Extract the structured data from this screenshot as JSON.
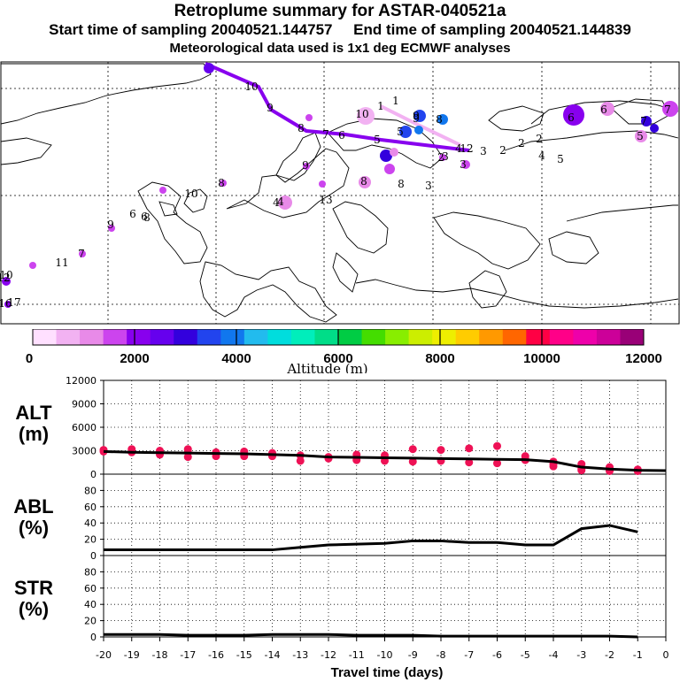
{
  "header": {
    "title": "Retroplume summary for ASTAR-040521a",
    "start_label": "Start time of sampling 20040521.144757",
    "end_label": "End time of sampling 20040521.144839",
    "met_label": "Meteorological data used is 1x1 deg ECMWF analyses"
  },
  "colorbar": {
    "label": "Altitude (m)",
    "ticks": [
      "0",
      "2000",
      "4000",
      "6000",
      "8000",
      "10000",
      "12000"
    ],
    "colors": [
      "#ffe0ff",
      "#f2b2f2",
      "#e88ae8",
      "#cc44ee",
      "#8800ee",
      "#6600ee",
      "#3300dd",
      "#2244ee",
      "#1177ee",
      "#22bbee",
      "#00dddd",
      "#00eebb",
      "#00dd88",
      "#00cc44",
      "#44dd00",
      "#88ee00",
      "#ccee00",
      "#eeee00",
      "#ffcc00",
      "#ff9900",
      "#ff6600",
      "#ff0044",
      "#ff0088",
      "#ee00aa",
      "#cc0099",
      "#990077"
    ]
  },
  "map": {
    "numbers": [
      {
        "t": "10",
        "c": "#6600ee"
      },
      {
        "t": "9",
        "c": "#6600ee"
      },
      {
        "t": "8",
        "c": "#6600ee"
      },
      {
        "t": "7",
        "c": "#6600ee"
      },
      {
        "t": "6",
        "c": "#6600ee"
      },
      {
        "t": "5",
        "c": "#6600ee"
      },
      {
        "t": "4",
        "c": "#6600ee"
      },
      {
        "t": "3",
        "c": "#6600ee"
      },
      {
        "t": "2",
        "c": "#6600ee"
      },
      {
        "t": "1",
        "c": "#e88ae8"
      },
      {
        "t": "1",
        "c": "#e88ae8"
      },
      {
        "t": "12",
        "c": "#6600ee"
      },
      {
        "t": "10",
        "c": "#cc44ee"
      },
      {
        "t": "9",
        "c": "#2244ee"
      },
      {
        "t": "8",
        "c": "#2244ee"
      },
      {
        "t": "5",
        "c": "#3300dd"
      },
      {
        "t": "6",
        "c": "#e88ae8"
      },
      {
        "t": "7",
        "c": "#3300dd"
      },
      {
        "t": "5",
        "c": "#f2b2f2"
      },
      {
        "t": "6",
        "c": "#cc44ee"
      },
      {
        "t": "7",
        "c": "#cc44ee"
      },
      {
        "t": "2",
        "c": "#cc44ee"
      },
      {
        "t": "3",
        "c": "#cc44ee"
      },
      {
        "t": "2",
        "c": "#cc44ee"
      },
      {
        "t": "9",
        "c": "#cc44ee"
      },
      {
        "t": "8",
        "c": "#cc44ee"
      },
      {
        "t": "9",
        "c": "#cc44ee"
      },
      {
        "t": "10",
        "c": "#cc44ee"
      },
      {
        "t": "4",
        "c": "#f2b2f2"
      },
      {
        "t": "8",
        "c": "#cc44ee"
      },
      {
        "t": "9",
        "c": "#cc44ee"
      },
      {
        "t": "6",
        "c": "#cc44ee"
      },
      {
        "t": "8",
        "c": "#cc44ee"
      },
      {
        "t": "6",
        "c": "#cc44ee"
      },
      {
        "t": "11",
        "c": "#cc44ee"
      },
      {
        "t": "7",
        "c": "#cc44ee"
      },
      {
        "t": "10",
        "c": "#cc44ee"
      },
      {
        "t": "12",
        "c": "#8800ee"
      },
      {
        "t": "13",
        "c": "#cc44ee"
      },
      {
        "t": "16",
        "c": "#8800ee"
      },
      {
        "t": "17",
        "c": "#8800ee"
      },
      {
        "t": "3",
        "c": "#cc44ee"
      },
      {
        "t": "4",
        "c": "#cc44ee"
      },
      {
        "t": "5",
        "c": "#cc44ee"
      },
      {
        "t": "2",
        "c": "#cc44ee"
      },
      {
        "t": "3",
        "c": "#cc44ee"
      },
      {
        "t": "4",
        "c": "#cc44ee"
      },
      {
        "t": "8",
        "c": "#cc44ee"
      }
    ]
  },
  "chart_data": [
    {
      "type": "scatter",
      "panel": "ALT",
      "ylabel": "ALT\n(m)",
      "ylabel_lines": [
        "ALT",
        "(m)"
      ],
      "ylim": [
        0,
        12000
      ],
      "yticks": [
        0,
        3000,
        6000,
        9000,
        12000
      ],
      "ytick_labels": [
        "0",
        "3000",
        "6000",
        "9000",
        "12000"
      ],
      "mean_line": {
        "x": [
          -20,
          -19,
          -18,
          -17,
          -16,
          -15,
          -14,
          -13,
          -12,
          -11,
          -10,
          -9,
          -8,
          -7,
          -6,
          -5,
          -4,
          -3,
          -2,
          -1,
          0
        ],
        "y": [
          2900,
          2800,
          2750,
          2700,
          2650,
          2600,
          2500,
          2400,
          2200,
          2150,
          2100,
          2050,
          2000,
          1950,
          1900,
          1850,
          1600,
          900,
          650,
          500,
          450
        ]
      },
      "points": [
        {
          "x": -20,
          "y": [
            3100,
            2900
          ]
        },
        {
          "x": -19,
          "y": [
            3200,
            2800
          ]
        },
        {
          "x": -18,
          "y": [
            3000,
            2500
          ]
        },
        {
          "x": -17,
          "y": [
            3200,
            2800,
            2200
          ]
        },
        {
          "x": -16,
          "y": [
            2800,
            2300
          ]
        },
        {
          "x": -15,
          "y": [
            2900,
            2300
          ]
        },
        {
          "x": -14,
          "y": [
            2700,
            2300
          ]
        },
        {
          "x": -13,
          "y": [
            2400,
            1700
          ]
        },
        {
          "x": -12,
          "y": [
            2200,
            2000
          ]
        },
        {
          "x": -11,
          "y": [
            2500,
            1800
          ]
        },
        {
          "x": -10,
          "y": [
            2400,
            1700
          ]
        },
        {
          "x": -9,
          "y": [
            3200,
            1600
          ]
        },
        {
          "x": -8,
          "y": [
            3100,
            1700
          ]
        },
        {
          "x": -7,
          "y": [
            3300,
            1500
          ]
        },
        {
          "x": -6,
          "y": [
            3600,
            1400
          ]
        },
        {
          "x": -5,
          "y": [
            2300,
            2000,
            1800
          ]
        },
        {
          "x": -4,
          "y": [
            1600,
            1300,
            1000
          ]
        },
        {
          "x": -3,
          "y": [
            1300,
            700,
            500
          ]
        },
        {
          "x": -2,
          "y": [
            900,
            600,
            400
          ]
        },
        {
          "x": -1,
          "y": [
            600,
            400
          ]
        }
      ]
    },
    {
      "type": "line",
      "panel": "ABL",
      "ylabel": "ABL\n(%)",
      "ylabel_lines": [
        "ABL",
        "(%)"
      ],
      "ylim": [
        0,
        100
      ],
      "yticks": [
        0,
        20,
        40,
        60,
        80
      ],
      "ytick_labels": [
        "0",
        "20",
        "40",
        "60",
        "80"
      ],
      "x": [
        -20,
        -19,
        -18,
        -17,
        -16,
        -15,
        -14,
        -13,
        -12,
        -11,
        -10,
        -9,
        -8,
        -7,
        -6,
        -5,
        -4,
        -3,
        -2,
        -1
      ],
      "y": [
        7,
        7,
        7,
        7,
        7,
        7,
        7,
        10,
        13,
        14,
        15,
        18,
        18,
        16,
        16,
        13,
        13,
        33,
        37,
        29
      ]
    },
    {
      "type": "line",
      "panel": "STR",
      "ylabel": "STR\n(%)",
      "ylabel_lines": [
        "STR",
        "(%)"
      ],
      "ylim": [
        0,
        100
      ],
      "yticks": [
        0,
        20,
        40,
        60,
        80
      ],
      "ytick_labels": [
        "0",
        "20",
        "40",
        "60",
        "80"
      ],
      "x": [
        -20,
        -19,
        -18,
        -17,
        -16,
        -15,
        -14,
        -13,
        -12,
        -11,
        -10,
        -9,
        -8,
        -7,
        -6,
        -5,
        -4,
        -3,
        -2,
        -1
      ],
      "y": [
        3,
        3,
        3,
        2,
        2,
        2,
        3,
        3,
        3,
        2,
        2,
        2,
        1,
        1,
        1,
        1,
        1,
        1,
        1,
        0
      ]
    }
  ],
  "xaxis": {
    "label": "Travel time (days)",
    "range": [
      -20,
      0
    ],
    "tick_labels": [
      "-20",
      "-19",
      "-18",
      "-17",
      "-16",
      "-15",
      "-14",
      "-13",
      "-12",
      "-11",
      "-10",
      "-9",
      "-8",
      "-7",
      "-6",
      "-5",
      "-4",
      "-3",
      "-2",
      "-1",
      "0"
    ]
  }
}
